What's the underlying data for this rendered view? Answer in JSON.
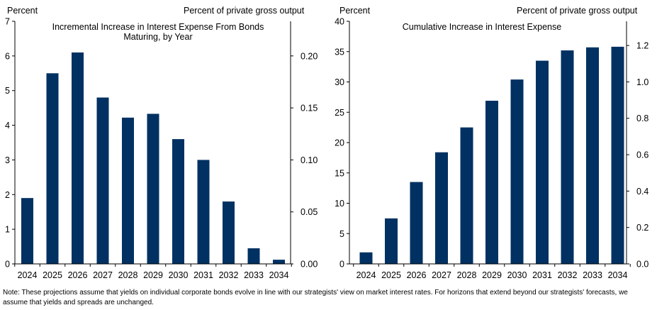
{
  "chart_data": [
    {
      "type": "bar",
      "title": "Incremental Increase in Interest Expense From Bonds Maturing, by Year",
      "title_lines": [
        "Incremental Increase in Interest Expense From Bonds",
        "Maturing, by Year"
      ],
      "ylabel_left": "Percent",
      "ylabel_right": "Percent of private  gross output",
      "categories": [
        "2024",
        "2025",
        "2026",
        "2027",
        "2028",
        "2029",
        "2030",
        "2031",
        "2032",
        "2033",
        "2034"
      ],
      "values": [
        1.9,
        5.5,
        6.1,
        4.8,
        4.22,
        4.33,
        3.6,
        3.0,
        1.8,
        0.45,
        0.12
      ],
      "ylim_left": [
        0,
        7
      ],
      "yticks_left": [
        "0",
        "1",
        "2",
        "3",
        "4",
        "5",
        "6",
        "7"
      ],
      "ylim_right": [
        0,
        0.2333
      ],
      "yticks_right": [
        "0.00",
        "0.05",
        "0.10",
        "0.15",
        "0.20"
      ],
      "bar_color": "#003162",
      "grid": false
    },
    {
      "type": "bar",
      "title": "Cumulative  Increase  in Interest Expense",
      "title_lines": [
        "Cumulative  Increase  in Interest Expense"
      ],
      "ylabel_left": "Percent",
      "ylabel_right": "Percent of private  gross output",
      "categories": [
        "2024",
        "2025",
        "2026",
        "2027",
        "2028",
        "2029",
        "2030",
        "2031",
        "2032",
        "2033",
        "2034"
      ],
      "values": [
        1.9,
        7.5,
        13.5,
        18.4,
        22.5,
        26.9,
        30.4,
        33.5,
        35.2,
        35.7,
        35.8
      ],
      "ylim_left": [
        0,
        40
      ],
      "yticks_left": [
        "0",
        "5",
        "10",
        "15",
        "20",
        "25",
        "30",
        "35",
        "40"
      ],
      "ylim_right": [
        0,
        1.333
      ],
      "yticks_right": [
        "0.0",
        "0.2",
        "0.4",
        "0.6",
        "0.8",
        "1.0",
        "1.2"
      ],
      "bar_color": "#003162",
      "grid": false
    }
  ],
  "note": "Note: These projections assume that yields on individual corporate bonds evolve in line with our strategists' view on market interest rates. For horizons that extend beyond our strategists' forecasts, we assume that yields and spreads are unchanged."
}
